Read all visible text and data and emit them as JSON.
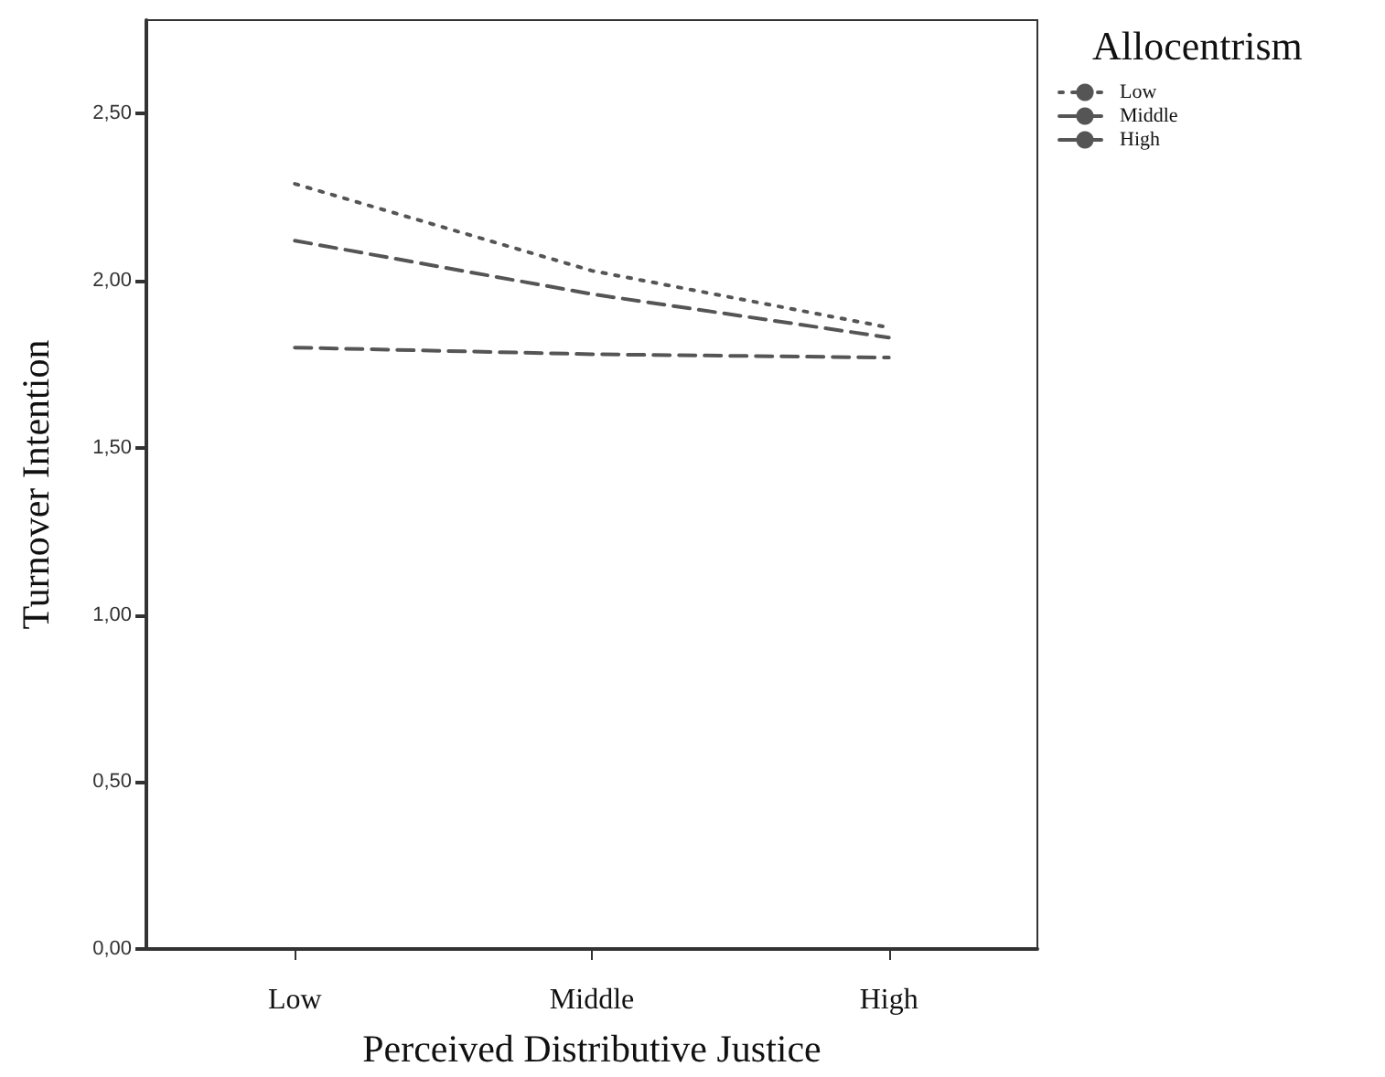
{
  "chart_data": {
    "type": "line",
    "xlabel": "Perceived Distributive Justice",
    "ylabel": "Turnover Intention",
    "legend_title": "Allocentrism",
    "categories": [
      "Low",
      "Middle",
      "High"
    ],
    "series": [
      {
        "name": "Low",
        "color": "#555555",
        "line_style": "dotted",
        "values": [
          2.29,
          2.03,
          1.86
        ]
      },
      {
        "name": "Middle",
        "color": "#555555",
        "line_style": "dashed",
        "values": [
          2.12,
          1.96,
          1.83
        ]
      },
      {
        "name": "High",
        "color": "#555555",
        "line_style": "dashed",
        "values": [
          1.8,
          1.78,
          1.77
        ]
      }
    ],
    "ylim": [
      0,
      2.78
    ],
    "yticks": [
      {
        "value": 0,
        "label": "0,00"
      },
      {
        "value": 0.5,
        "label": "0,50"
      },
      {
        "value": 1,
        "label": "1,00"
      },
      {
        "value": 1.5,
        "label": "1,50"
      },
      {
        "value": 2,
        "label": "2,00"
      },
      {
        "value": 2.5,
        "label": "2,50"
      }
    ],
    "grid": false,
    "legend": "top right",
    "marker": "none"
  }
}
